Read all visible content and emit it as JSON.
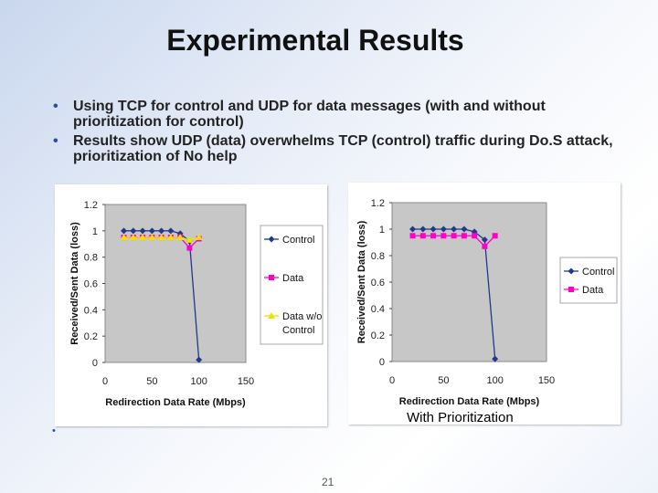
{
  "title": "Experimental Results",
  "bullets": [
    "Using TCP for control and UDP for data messages (with and without prioritization for control)",
    "Results show UDP (data) overwhelms TCP (control) traffic during Do.S attack, prioritization of No help"
  ],
  "caption_right": "With Prioritization",
  "page_number": "21",
  "colors": {
    "control": "#1f3a8a",
    "data": "#ff00cc",
    "data_wo_control": "#f2e000"
  },
  "chart_data": [
    {
      "type": "line",
      "xlabel": "Redirection Data Rate (Mbps)",
      "ylabel": "Received/Sent Data (loss)",
      "xlim": [
        0,
        150
      ],
      "ylim": [
        0,
        1.2
      ],
      "xticks": [
        "0",
        "50",
        "100",
        "150"
      ],
      "yticks": [
        "0",
        "0.2",
        "0.4",
        "0.6",
        "0.8",
        "1",
        "1.2"
      ],
      "legend_position": "right",
      "series": [
        {
          "name": "Control",
          "color": "#1f3a8a",
          "marker": "diamond",
          "x": [
            20,
            30,
            40,
            50,
            60,
            70,
            80,
            90,
            100
          ],
          "y": [
            1.0,
            1.0,
            1.0,
            1.0,
            1.0,
            1.0,
            0.98,
            0.92,
            0.02
          ]
        },
        {
          "name": "Data",
          "color": "#ff00cc",
          "marker": "square",
          "x": [
            20,
            30,
            40,
            50,
            60,
            70,
            80,
            90,
            100
          ],
          "y": [
            0.95,
            0.95,
            0.95,
            0.95,
            0.95,
            0.95,
            0.95,
            0.87,
            0.94
          ]
        },
        {
          "name": "Data w/o Control",
          "color": "#f2e000",
          "marker": "triangle",
          "x": [
            20,
            30,
            40,
            50,
            60,
            70,
            80,
            90,
            100
          ],
          "y": [
            0.95,
            0.95,
            0.95,
            0.95,
            0.95,
            0.95,
            0.95,
            0.93,
            0.95
          ]
        }
      ]
    },
    {
      "type": "line",
      "xlabel": "Redirection Data Rate (Mbps)",
      "ylabel": "Received/Sent Data (loss)",
      "xlim": [
        0,
        150
      ],
      "ylim": [
        0,
        1.2
      ],
      "xticks": [
        "0",
        "50",
        "100",
        "150"
      ],
      "yticks": [
        "0",
        "0.2",
        "0.4",
        "0.6",
        "0.8",
        "1",
        "1.2"
      ],
      "legend_position": "right",
      "series": [
        {
          "name": "Control",
          "color": "#1f3a8a",
          "marker": "diamond",
          "x": [
            20,
            30,
            40,
            50,
            60,
            70,
            80,
            90,
            100
          ],
          "y": [
            1.0,
            1.0,
            1.0,
            1.0,
            1.0,
            1.0,
            0.98,
            0.92,
            0.02
          ]
        },
        {
          "name": "Data",
          "color": "#ff00cc",
          "marker": "square",
          "x": [
            20,
            30,
            40,
            50,
            60,
            70,
            80,
            90,
            100
          ],
          "y": [
            0.95,
            0.95,
            0.95,
            0.95,
            0.95,
            0.95,
            0.95,
            0.87,
            0.95
          ]
        }
      ]
    }
  ]
}
